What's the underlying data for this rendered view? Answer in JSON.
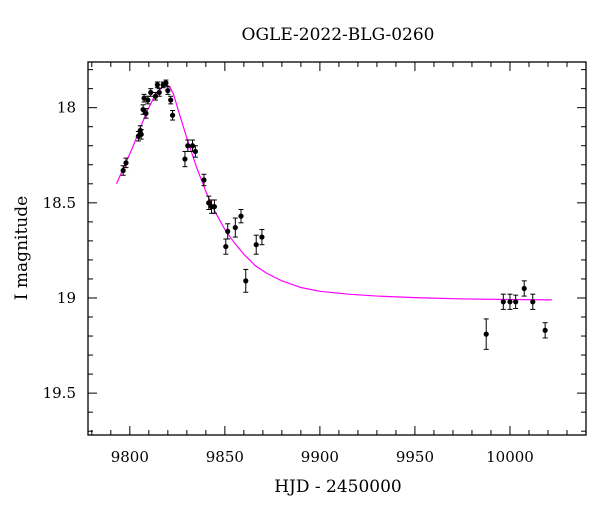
{
  "chart_data": {
    "type": "scatter",
    "title": "OGLE-2022-BLG-0260",
    "xlabel": "HJD - 2450000",
    "ylabel": "I magnitude",
    "xlim": [
      9778,
      10040
    ],
    "ylim": [
      19.72,
      17.76
    ],
    "y_inverted": true,
    "grid": false,
    "x_ticks": [
      9800,
      9850,
      9900,
      9950,
      10000
    ],
    "x_tick_labels": [
      "9800",
      "9850",
      "9900",
      "9950",
      "10000"
    ],
    "y_ticks": [
      18,
      18.5,
      19,
      19.5
    ],
    "y_tick_labels": [
      "18",
      "18.5",
      "19",
      "19.5"
    ],
    "series": [
      {
        "kind": "points_with_errorbars",
        "color": "#000000",
        "points": [
          {
            "x": 9796.5,
            "y": 18.33,
            "err": 0.025
          },
          {
            "x": 9798.0,
            "y": 18.29,
            "err": 0.025
          },
          {
            "x": 9804.5,
            "y": 18.15,
            "err": 0.025
          },
          {
            "x": 9805.5,
            "y": 18.12,
            "err": 0.025
          },
          {
            "x": 9806.0,
            "y": 18.14,
            "err": 0.025
          },
          {
            "x": 9807.0,
            "y": 18.01,
            "err": 0.025
          },
          {
            "x": 9807.5,
            "y": 17.95,
            "err": 0.02
          },
          {
            "x": 9808.5,
            "y": 18.03,
            "err": 0.025
          },
          {
            "x": 9809.5,
            "y": 17.96,
            "err": 0.02
          },
          {
            "x": 9811.0,
            "y": 17.92,
            "err": 0.02
          },
          {
            "x": 9813.5,
            "y": 17.94,
            "err": 0.02
          },
          {
            "x": 9814.5,
            "y": 17.88,
            "err": 0.015
          },
          {
            "x": 9815.5,
            "y": 17.92,
            "err": 0.02
          },
          {
            "x": 9817.5,
            "y": 17.88,
            "err": 0.015
          },
          {
            "x": 9819.0,
            "y": 17.87,
            "err": 0.015
          },
          {
            "x": 9820.0,
            "y": 17.91,
            "err": 0.02
          },
          {
            "x": 9821.5,
            "y": 17.96,
            "err": 0.02
          },
          {
            "x": 9822.5,
            "y": 18.04,
            "err": 0.025
          },
          {
            "x": 9829.0,
            "y": 18.27,
            "err": 0.04
          },
          {
            "x": 9830.5,
            "y": 18.2,
            "err": 0.03
          },
          {
            "x": 9833.0,
            "y": 18.2,
            "err": 0.03
          },
          {
            "x": 9834.5,
            "y": 18.23,
            "err": 0.03
          },
          {
            "x": 9839.0,
            "y": 18.38,
            "err": 0.03
          },
          {
            "x": 9841.5,
            "y": 18.5,
            "err": 0.035
          },
          {
            "x": 9843.0,
            "y": 18.52,
            "err": 0.035
          },
          {
            "x": 9844.5,
            "y": 18.52,
            "err": 0.035
          },
          {
            "x": 9850.5,
            "y": 18.73,
            "err": 0.04
          },
          {
            "x": 9851.5,
            "y": 18.65,
            "err": 0.04
          },
          {
            "x": 9855.5,
            "y": 18.63,
            "err": 0.05
          },
          {
            "x": 9858.5,
            "y": 18.57,
            "err": 0.035
          },
          {
            "x": 9861.0,
            "y": 18.91,
            "err": 0.06
          },
          {
            "x": 9866.5,
            "y": 18.72,
            "err": 0.05
          },
          {
            "x": 9869.5,
            "y": 18.68,
            "err": 0.04
          },
          {
            "x": 9987.5,
            "y": 19.19,
            "err": 0.08
          },
          {
            "x": 9996.5,
            "y": 19.02,
            "err": 0.04
          },
          {
            "x": 10000.0,
            "y": 19.02,
            "err": 0.04
          },
          {
            "x": 10003.0,
            "y": 19.02,
            "err": 0.035
          },
          {
            "x": 10007.5,
            "y": 18.95,
            "err": 0.04
          },
          {
            "x": 10012.0,
            "y": 19.02,
            "err": 0.04
          },
          {
            "x": 10018.5,
            "y": 19.17,
            "err": 0.04
          }
        ]
      },
      {
        "kind": "model_curve",
        "color": "#ff00ff",
        "points": [
          {
            "x": 9793,
            "y": 18.4
          },
          {
            "x": 9797,
            "y": 18.31
          },
          {
            "x": 9801,
            "y": 18.22
          },
          {
            "x": 9805,
            "y": 18.12
          },
          {
            "x": 9809,
            "y": 18.02
          },
          {
            "x": 9813,
            "y": 17.94
          },
          {
            "x": 9817,
            "y": 17.89
          },
          {
            "x": 9819,
            "y": 17.88
          },
          {
            "x": 9821,
            "y": 17.89
          },
          {
            "x": 9823,
            "y": 17.93
          },
          {
            "x": 9826,
            "y": 18.03
          },
          {
            "x": 9830,
            "y": 18.16
          },
          {
            "x": 9835,
            "y": 18.31
          },
          {
            "x": 9840,
            "y": 18.44
          },
          {
            "x": 9845,
            "y": 18.55
          },
          {
            "x": 9850,
            "y": 18.64
          },
          {
            "x": 9855,
            "y": 18.71
          },
          {
            "x": 9860,
            "y": 18.77
          },
          {
            "x": 9866,
            "y": 18.83
          },
          {
            "x": 9872,
            "y": 18.87
          },
          {
            "x": 9880,
            "y": 18.91
          },
          {
            "x": 9890,
            "y": 18.945
          },
          {
            "x": 9900,
            "y": 18.965
          },
          {
            "x": 9915,
            "y": 18.98
          },
          {
            "x": 9930,
            "y": 18.99
          },
          {
            "x": 9950,
            "y": 18.998
          },
          {
            "x": 9975,
            "y": 19.005
          },
          {
            "x": 10000,
            "y": 19.008
          },
          {
            "x": 10022,
            "y": 19.01
          }
        ]
      }
    ]
  }
}
